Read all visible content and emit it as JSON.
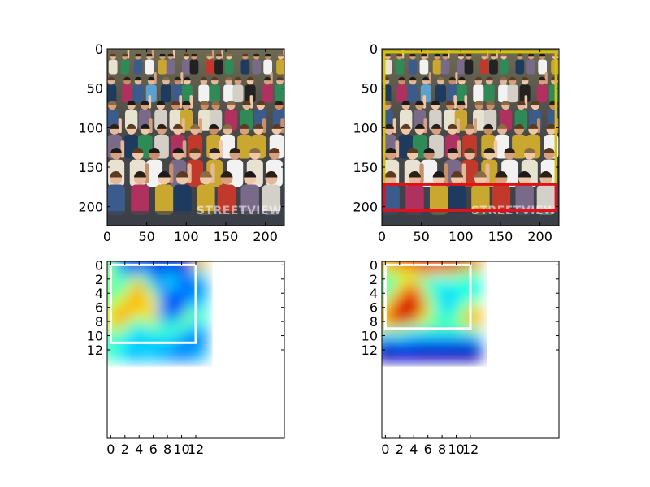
{
  "colors": {
    "background": "#ffffff",
    "box_yellow": "#d4c10a",
    "box_red": "#e3101a",
    "box_white": "#ffffff",
    "spine": "#000000"
  },
  "photo": {
    "watermark": "STREETVIEW",
    "scene": "crowd-photo"
  },
  "chart_data": [
    {
      "type": "image",
      "subplot": "top-left",
      "extent": [
        0,
        224
      ],
      "xticks": [
        0,
        50,
        100,
        150,
        200
      ],
      "yticks": [
        0,
        50,
        100,
        150,
        200
      ],
      "boxes": []
    },
    {
      "type": "image",
      "subplot": "top-right",
      "extent": [
        0,
        224
      ],
      "xticks": [
        0,
        50,
        100,
        150,
        200
      ],
      "yticks": [
        0,
        50,
        100,
        150,
        200
      ],
      "boxes": [
        {
          "color": "#d4c10a",
          "x0": 3,
          "y0": 4,
          "x1": 220,
          "y1": 171
        },
        {
          "color": "#e3101a",
          "x0": 3,
          "y0": 172,
          "x1": 220,
          "y1": 205
        }
      ]
    },
    {
      "type": "heatmap",
      "subplot": "bottom-left",
      "colormap": "jet",
      "extent": [
        12.5
      ],
      "xticks": [
        0,
        2,
        4,
        6,
        8,
        10,
        12
      ],
      "yticks": [
        0,
        2,
        4,
        6,
        8,
        10,
        12
      ],
      "boxes": [
        {
          "color": "#ffffff",
          "x0": 0,
          "y0": 0,
          "x1": 12,
          "y1": 11
        }
      ],
      "grid": [
        [
          0.5,
          0.3,
          0.12,
          0.08,
          0.1,
          0.12,
          0.1,
          0.08,
          0.1,
          0.1,
          0.06,
          0.1,
          0.7
        ],
        [
          0.55,
          0.4,
          0.3,
          0.25,
          0.3,
          0.35,
          0.2,
          0.15,
          0.3,
          0.25,
          0.2,
          0.25,
          0.45
        ],
        [
          0.5,
          0.45,
          0.4,
          0.55,
          0.6,
          0.45,
          0.3,
          0.2,
          0.4,
          0.3,
          0.25,
          0.2,
          0.3
        ],
        [
          0.5,
          0.4,
          0.45,
          0.6,
          0.85,
          0.5,
          0.35,
          0.2,
          0.3,
          0.35,
          0.2,
          0.15,
          0.25
        ],
        [
          0.45,
          0.5,
          0.55,
          0.7,
          0.75,
          0.6,
          0.55,
          0.3,
          0.2,
          0.25,
          0.25,
          0.2,
          0.3
        ],
        [
          0.5,
          0.55,
          0.6,
          0.7,
          0.65,
          0.7,
          0.6,
          0.3,
          0.15,
          0.1,
          0.2,
          0.25,
          0.3
        ],
        [
          0.55,
          0.65,
          0.7,
          0.75,
          0.75,
          0.65,
          0.65,
          0.35,
          0.12,
          0.1,
          0.15,
          0.4,
          0.35
        ],
        [
          0.6,
          0.8,
          0.7,
          0.65,
          0.6,
          0.6,
          0.75,
          0.3,
          0.15,
          0.2,
          0.3,
          0.55,
          0.45
        ],
        [
          0.6,
          0.8,
          0.65,
          0.5,
          0.45,
          0.55,
          0.6,
          0.4,
          0.3,
          0.35,
          0.45,
          0.5,
          0.4
        ],
        [
          0.5,
          0.6,
          0.5,
          0.4,
          0.35,
          0.4,
          0.45,
          0.45,
          0.4,
          0.5,
          0.4,
          0.35,
          0.3
        ],
        [
          0.45,
          0.5,
          0.4,
          0.35,
          0.35,
          0.3,
          0.4,
          0.35,
          0.4,
          0.4,
          0.3,
          0.3,
          0.25
        ],
        [
          0.4,
          0.4,
          0.35,
          0.35,
          0.3,
          0.35,
          0.35,
          0.3,
          0.35,
          0.3,
          0.25,
          0.25,
          0.25
        ],
        [
          0.45,
          0.4,
          0.35,
          0.3,
          0.3,
          0.35,
          0.3,
          0.3,
          0.3,
          0.25,
          0.25,
          0.25,
          0.3
        ]
      ]
    },
    {
      "type": "heatmap",
      "subplot": "bottom-right",
      "colormap": "jet",
      "extent": [
        12.5
      ],
      "xticks": [
        0,
        2,
        4,
        6,
        8,
        10,
        12
      ],
      "yticks": [
        0,
        2,
        4,
        6,
        8,
        10,
        12
      ],
      "boxes": [
        {
          "color": "#ffffff",
          "x0": 0,
          "y0": 0,
          "x1": 12,
          "y1": 9
        }
      ],
      "grid": [
        [
          0.7,
          0.75,
          0.85,
          0.9,
          0.88,
          0.92,
          0.9,
          0.88,
          0.92,
          0.92,
          0.95,
          0.92,
          0.75
        ],
        [
          0.55,
          0.55,
          0.6,
          0.65,
          0.65,
          0.7,
          0.75,
          0.7,
          0.65,
          0.72,
          0.65,
          0.55,
          0.5
        ],
        [
          0.45,
          0.45,
          0.55,
          0.6,
          0.55,
          0.45,
          0.42,
          0.4,
          0.38,
          0.45,
          0.4,
          0.4,
          0.42
        ],
        [
          0.45,
          0.45,
          0.6,
          0.75,
          0.85,
          0.6,
          0.45,
          0.4,
          0.35,
          0.42,
          0.4,
          0.4,
          0.4
        ],
        [
          0.45,
          0.55,
          0.7,
          0.85,
          0.9,
          0.7,
          0.45,
          0.42,
          0.38,
          0.3,
          0.38,
          0.4,
          0.4
        ],
        [
          0.5,
          0.7,
          0.85,
          0.92,
          0.92,
          0.8,
          0.55,
          0.45,
          0.35,
          0.3,
          0.35,
          0.4,
          0.45
        ],
        [
          0.6,
          0.8,
          0.9,
          0.95,
          0.92,
          0.9,
          0.6,
          0.45,
          0.35,
          0.35,
          0.4,
          0.5,
          0.6
        ],
        [
          0.7,
          0.88,
          0.95,
          0.95,
          0.9,
          0.8,
          0.6,
          0.45,
          0.4,
          0.4,
          0.45,
          0.55,
          0.75
        ],
        [
          0.7,
          0.9,
          0.9,
          0.8,
          0.7,
          0.6,
          0.5,
          0.45,
          0.45,
          0.45,
          0.45,
          0.55,
          0.7
        ],
        [
          0.55,
          0.6,
          0.55,
          0.5,
          0.45,
          0.45,
          0.45,
          0.45,
          0.45,
          0.45,
          0.45,
          0.5,
          0.55
        ],
        [
          0.35,
          0.38,
          0.38,
          0.38,
          0.35,
          0.35,
          0.35,
          0.35,
          0.35,
          0.35,
          0.35,
          0.35,
          0.35
        ],
        [
          0.15,
          0.15,
          0.18,
          0.18,
          0.15,
          0.15,
          0.15,
          0.15,
          0.15,
          0.15,
          0.15,
          0.15,
          0.18
        ],
        [
          0.05,
          0.05,
          0.08,
          0.08,
          0.08,
          0.06,
          0.06,
          0.06,
          0.06,
          0.06,
          0.05,
          0.05,
          0.05
        ]
      ]
    }
  ]
}
